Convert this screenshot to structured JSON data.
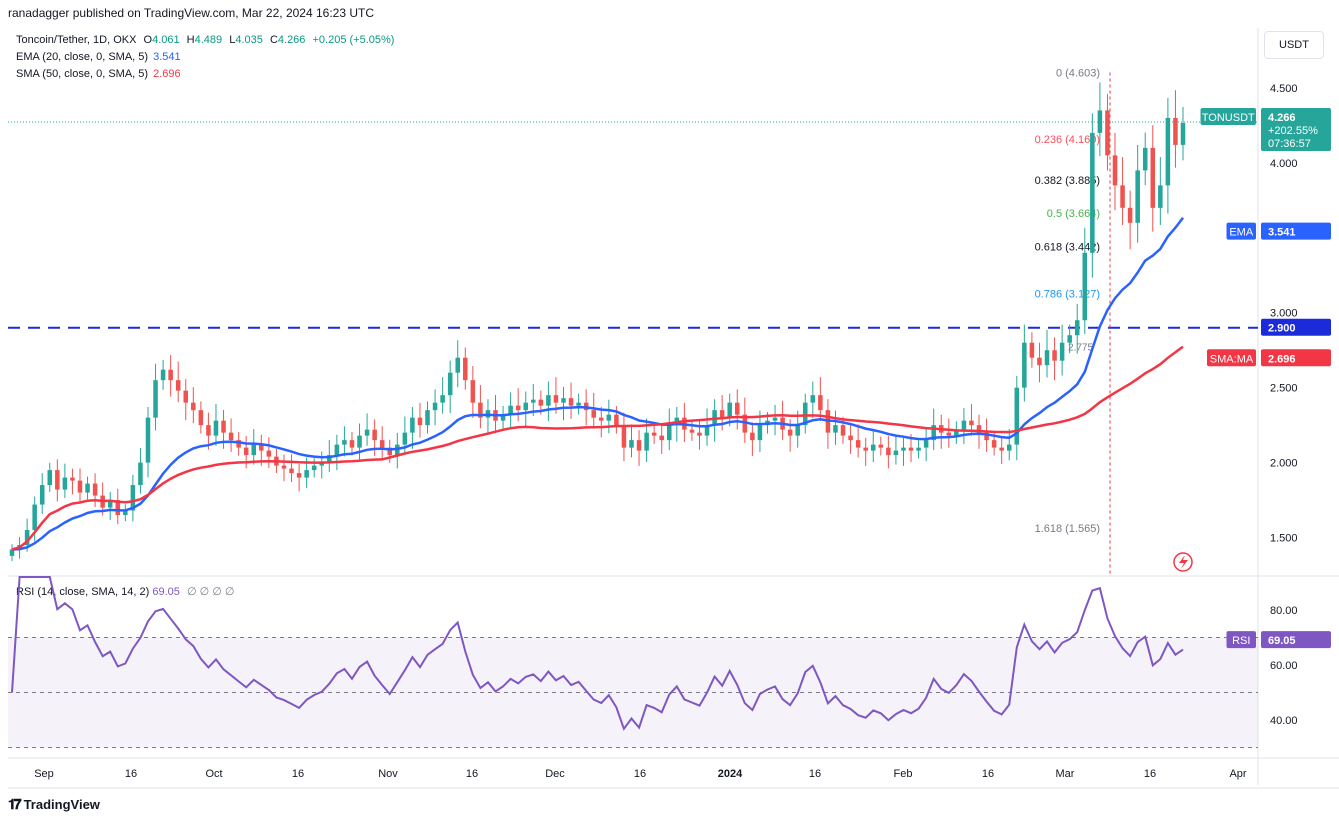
{
  "header": {
    "published_by": "ranadagger published on TradingView.com, Mar 22, 2024 16:23 UTC",
    "symbol_line": "Toncoin/Tether, 1D, OKX",
    "ohlc": {
      "o_label": "O",
      "o": "4.061",
      "h_label": "H",
      "h": "4.489",
      "l_label": "L",
      "l": "4.035",
      "c_label": "C",
      "c": "4.266",
      "change": "+0.205 (+5.05%)"
    },
    "ema_label": "EMA (20, close, 0, SMA, 5)",
    "ema_value": "3.541",
    "sma_label": "SMA (50, close, 0, SMA, 5)",
    "sma_value": "2.696",
    "rsi_label": "RSI (14, close, SMA, 14, 2)",
    "rsi_value": "69.05",
    "rsi_extra": "∅ ∅ ∅ ∅"
  },
  "currency_button": "USDT",
  "footer_logo": "TradingView",
  "colors": {
    "up": "#26a69a",
    "down": "#ef5350",
    "ema": "#2962ff",
    "sma": "#f23645",
    "rsi": "#7e57c2",
    "resistance": "#1c2bd9",
    "fib": "#787b86"
  },
  "price_tags": {
    "symbol": {
      "label": "TONUSDT",
      "price": "4.266",
      "change": "+202.55%",
      "timer": "07:36:57"
    },
    "ema": {
      "label": "EMA",
      "value": "3.541"
    },
    "resistance": {
      "value": "2.900"
    },
    "sma": {
      "label": "SMA:MA",
      "value": "2.696"
    },
    "rsi": {
      "label": "RSI",
      "value": "69.05"
    }
  },
  "chart_data": {
    "type": "candlestick",
    "y_axis": {
      "range": [
        1.25,
        4.9
      ],
      "ticks": [
        "4.500",
        "4.000",
        "3.000",
        "2.500",
        "2.000",
        "1.500"
      ]
    },
    "x_axis": {
      "ticks": [
        "Sep",
        "16",
        "Oct",
        "16",
        "Nov",
        "16",
        "Dec",
        "16",
        "2024",
        "16",
        "Feb",
        "16",
        "Mar",
        "16",
        "Apr"
      ]
    },
    "resistance_level": 2.9,
    "fib_levels": [
      {
        "label": "0 (4.603)",
        "value": 4.603,
        "color": "#787b86"
      },
      {
        "label": "0.236 (4.160)",
        "value": 4.16,
        "color": "#f7525f"
      },
      {
        "label": "0.382 (3.885)",
        "value": 3.885,
        "color": "#131722"
      },
      {
        "label": "0.5 (3.664)",
        "value": 3.664,
        "color": "#4caf50"
      },
      {
        "label": "0.618 (3.442)",
        "value": 3.442,
        "color": "#131722"
      },
      {
        "label": "0.786 (3.127)",
        "value": 3.127,
        "color": "#2196f3"
      },
      {
        "label": "1.618 (1.565)",
        "value": 1.565,
        "color": "#787b86"
      }
    ],
    "extra_annotation": "2.775",
    "close": [
      1.42,
      1.45,
      1.55,
      1.72,
      1.85,
      1.95,
      1.82,
      1.9,
      1.88,
      1.8,
      1.86,
      1.78,
      1.7,
      1.75,
      1.65,
      1.68,
      1.85,
      2.0,
      2.3,
      2.55,
      2.62,
      2.55,
      2.48,
      2.4,
      2.35,
      2.25,
      2.18,
      2.28,
      2.2,
      2.15,
      2.1,
      2.05,
      2.12,
      2.08,
      2.04,
      1.98,
      1.96,
      1.93,
      1.9,
      1.95,
      1.98,
      2.0,
      2.05,
      2.12,
      2.15,
      2.1,
      2.18,
      2.22,
      2.15,
      2.1,
      2.05,
      2.12,
      2.2,
      2.3,
      2.25,
      2.35,
      2.4,
      2.45,
      2.6,
      2.7,
      2.55,
      2.4,
      2.3,
      2.35,
      2.28,
      2.32,
      2.38,
      2.35,
      2.4,
      2.42,
      2.38,
      2.45,
      2.4,
      2.43,
      2.38,
      2.4,
      2.35,
      2.3,
      2.28,
      2.32,
      2.25,
      2.1,
      2.15,
      2.08,
      2.2,
      2.18,
      2.15,
      2.25,
      2.3,
      2.22,
      2.2,
      2.18,
      2.25,
      2.35,
      2.3,
      2.4,
      2.32,
      2.2,
      2.15,
      2.25,
      2.28,
      2.3,
      2.22,
      2.18,
      2.25,
      2.4,
      2.45,
      2.35,
      2.2,
      2.25,
      2.18,
      2.15,
      2.1,
      2.08,
      2.12,
      2.1,
      2.05,
      2.08,
      2.1,
      2.08,
      2.1,
      2.15,
      2.25,
      2.2,
      2.18,
      2.22,
      2.28,
      2.25,
      2.2,
      2.15,
      2.1,
      2.08,
      2.12,
      2.5,
      2.8,
      2.7,
      2.65,
      2.75,
      2.68,
      2.8,
      2.85,
      2.95,
      3.4,
      4.2,
      4.35,
      4.05,
      3.85,
      3.7,
      3.6,
      3.95,
      4.1,
      3.7,
      3.85,
      4.3,
      4.12,
      4.266
    ]
  }
}
